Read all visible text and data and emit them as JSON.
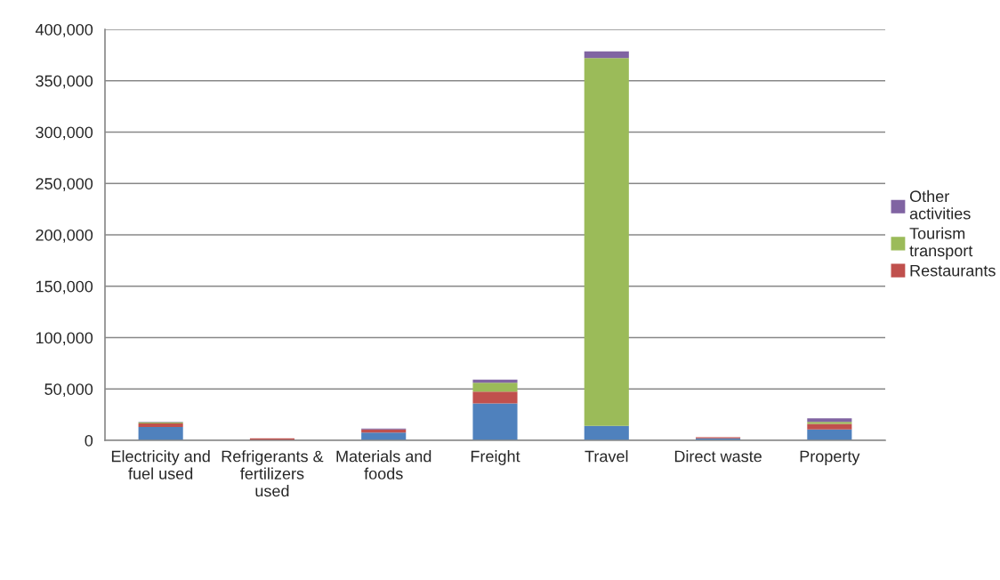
{
  "chart_data": {
    "type": "bar",
    "stacked": true,
    "categories": [
      "Electricity and fuel used",
      "Refrigerants & fertilizers used",
      "Materials and foods",
      "Freight",
      "Travel",
      "Direct waste",
      "Property"
    ],
    "series": [
      {
        "color": "#4f81bd",
        "values": [
          13000,
          null,
          7500,
          36000,
          14000,
          2000,
          10500
        ]
      },
      {
        "name": "Restaurants",
        "color": "#c0504d",
        "values": [
          3500,
          2000,
          3000,
          11500,
          null,
          1000,
          5500
        ]
      },
      {
        "name": "Tourism transport",
        "color": "#9bbb59",
        "values": [
          1000,
          null,
          null,
          8500,
          358000,
          null,
          2000
        ]
      },
      {
        "name": "Other activities",
        "color": "#8064a2",
        "values": [
          500,
          null,
          1000,
          3000,
          6500,
          null,
          3500
        ]
      }
    ],
    "ylim": [
      0,
      400000
    ],
    "yticks": [
      {
        "value": 0,
        "label": "0"
      },
      {
        "value": 50000,
        "label": "50,000"
      },
      {
        "value": 100000,
        "label": "100,000"
      },
      {
        "value": 150000,
        "label": "150,000"
      },
      {
        "value": 200000,
        "label": "200,000"
      },
      {
        "value": 250000,
        "label": "250,000"
      },
      {
        "value": 300000,
        "label": "300,000"
      },
      {
        "value": 350000,
        "label": "350,000"
      },
      {
        "value": 400000,
        "label": "400,000"
      }
    ],
    "grid": "y",
    "legend": "right"
  }
}
